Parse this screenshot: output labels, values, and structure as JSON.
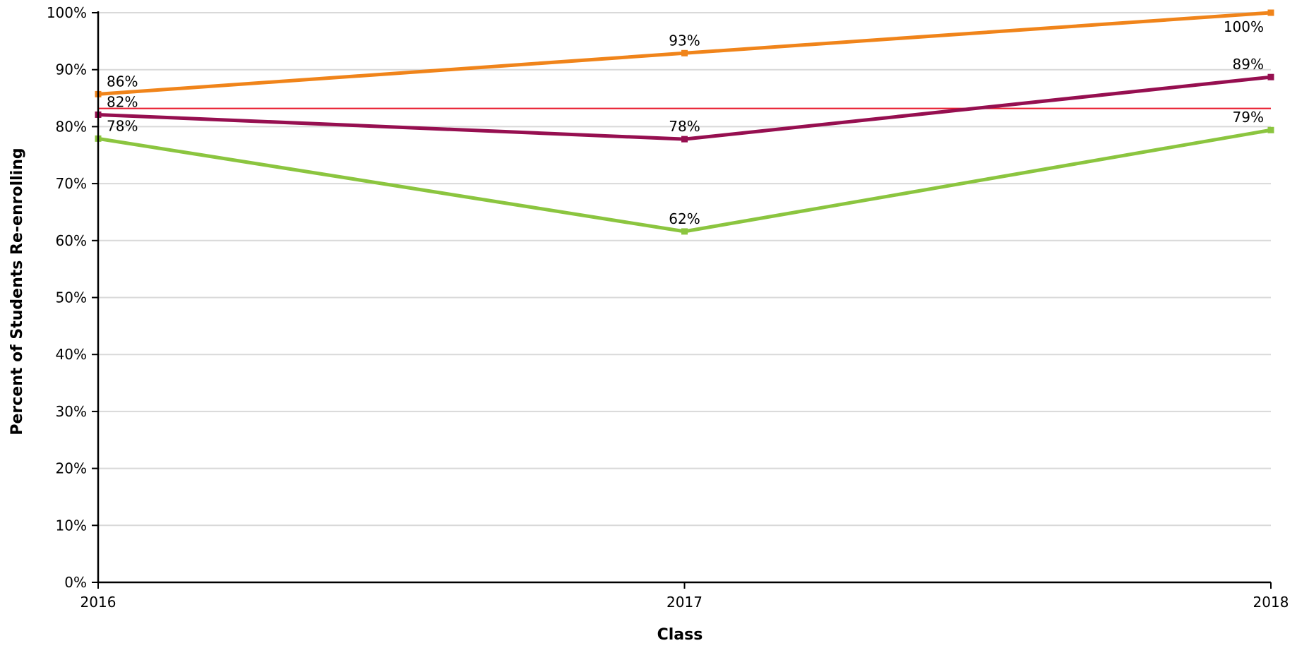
{
  "chart_data": {
    "type": "line",
    "xlabel": "Class",
    "ylabel": "Percent of Students Re-enrolling",
    "categories": [
      "2016",
      "2017",
      "2018"
    ],
    "ylim": [
      0,
      100
    ],
    "yticks": [
      "0%",
      "10%",
      "20%",
      "30%",
      "40%",
      "50%",
      "60%",
      "70%",
      "80%",
      "90%",
      "100%"
    ],
    "grid": true,
    "legend": "none",
    "series": [
      {
        "color": "#f0841a",
        "values": [
          85.7,
          92.9,
          100.0
        ],
        "labels": [
          "86%",
          "93%",
          "100%"
        ]
      },
      {
        "color": "#960f50",
        "values": [
          82.1,
          77.8,
          88.7
        ],
        "labels": [
          "82%",
          "78%",
          "89%"
        ]
      },
      {
        "color": "#8bc53f",
        "values": [
          77.9,
          61.6,
          79.4
        ],
        "labels": [
          "78%",
          "62%",
          "79%"
        ]
      }
    ],
    "reference_line": {
      "value": 83.2,
      "color": "#e8192c"
    }
  }
}
